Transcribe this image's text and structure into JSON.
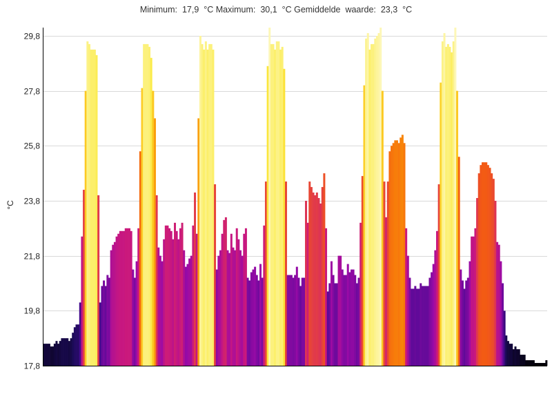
{
  "chart_data": {
    "type": "bar",
    "title": "Minimum:  17,9  °C Maximum:  30,1  °C Gemiddelde  waarde:  23,3  °C",
    "ylabel": "°C",
    "ylim": [
      17.8,
      30.1
    ],
    "yticks": [
      "17,8",
      "19,8",
      "21,8",
      "23,8",
      "25,8",
      "27,8",
      "29,8"
    ],
    "ytick_values": [
      17.8,
      19.8,
      21.8,
      23.8,
      25.8,
      27.8,
      29.8
    ],
    "grid": true,
    "color_scale": {
      "name": "inferno-like",
      "stops": [
        "#000000",
        "#1c0b59",
        "#4b0a94",
        "#9a0aa6",
        "#c8177f",
        "#e0384e",
        "#f35a14",
        "#f98e06",
        "#fcc41e",
        "#fbeb40",
        "#fdf7b8"
      ]
    },
    "values": [
      18.6,
      18.6,
      18.6,
      18.6,
      18.5,
      18.5,
      18.6,
      18.7,
      18.6,
      18.7,
      18.8,
      18.8,
      18.8,
      18.8,
      18.7,
      18.8,
      19.0,
      19.2,
      19.3,
      19.3,
      20.1,
      22.5,
      24.2,
      27.8,
      29.6,
      29.5,
      29.3,
      29.3,
      29.3,
      29.1,
      24.0,
      20.1,
      20.7,
      20.9,
      20.7,
      21.1,
      21.0,
      22.0,
      22.2,
      22.3,
      22.5,
      22.6,
      22.7,
      22.7,
      22.7,
      22.8,
      22.8,
      22.8,
      22.7,
      21.3,
      21.0,
      21.6,
      22.8,
      25.6,
      27.9,
      29.5,
      29.5,
      29.5,
      29.4,
      29.0,
      27.8,
      26.8,
      24.0,
      22.1,
      21.8,
      21.6,
      22.4,
      22.9,
      22.9,
      22.8,
      22.7,
      22.4,
      23.0,
      22.7,
      22.4,
      22.8,
      23.0,
      22.0,
      21.4,
      21.5,
      21.7,
      21.8,
      22.9,
      24.1,
      22.6,
      26.8,
      29.8,
      29.5,
      29.3,
      29.6,
      29.3,
      29.5,
      29.5,
      29.3,
      24.4,
      21.3,
      21.8,
      22.0,
      22.6,
      23.1,
      23.2,
      22.0,
      21.9,
      22.6,
      22.1,
      22.0,
      22.8,
      22.4,
      22.0,
      21.8,
      22.6,
      22.8,
      21.0,
      20.9,
      21.2,
      21.3,
      21.4,
      21.1,
      20.9,
      21.5,
      21.0,
      22.9,
      24.5,
      28.7,
      30.1,
      29.5,
      29.5,
      29.3,
      29.6,
      29.6,
      29.3,
      29.4,
      28.6,
      24.5,
      21.1,
      21.1,
      21.1,
      21.0,
      21.1,
      21.4,
      21.0,
      20.7,
      21.0,
      21.0,
      23.8,
      23.0,
      24.5,
      24.3,
      24.1,
      24.0,
      24.1,
      23.9,
      23.7,
      24.3,
      24.8,
      22.8,
      20.5,
      20.8,
      21.6,
      21.1,
      20.8,
      20.8,
      21.8,
      21.8,
      21.3,
      21.1,
      21.1,
      21.5,
      21.2,
      21.3,
      21.3,
      21.1,
      20.8,
      21.0,
      23.0,
      24.7,
      28.0,
      29.7,
      29.9,
      29.3,
      29.5,
      29.5,
      29.7,
      29.8,
      29.9,
      30.1,
      27.8,
      24.5,
      23.2,
      24.5,
      25.6,
      25.8,
      25.9,
      26.0,
      26.0,
      25.9,
      26.1,
      26.2,
      25.9,
      22.8,
      21.8,
      21.0,
      20.6,
      20.6,
      20.7,
      20.6,
      20.6,
      20.8,
      20.7,
      20.7,
      20.7,
      20.7,
      21.0,
      21.2,
      21.5,
      22.0,
      22.7,
      24.4,
      28.1,
      29.6,
      29.9,
      29.4,
      29.5,
      29.4,
      29.2,
      29.6,
      30.1,
      27.8,
      25.4,
      21.3,
      20.9,
      20.6,
      20.9,
      21.0,
      21.6,
      22.5,
      22.5,
      22.8,
      23.9,
      24.8,
      25.1,
      25.2,
      25.2,
      25.2,
      25.1,
      25.0,
      24.8,
      24.6,
      23.8,
      22.3,
      22.2,
      21.6,
      20.8,
      19.8,
      18.9,
      18.7,
      18.6,
      18.6,
      18.4,
      18.5,
      18.4,
      18.4,
      18.2,
      18.2,
      18.2,
      18.0,
      18.0,
      18.0,
      18.0,
      18.0,
      17.9,
      17.9,
      17.9,
      17.9,
      17.9,
      17.9,
      18.0
    ]
  }
}
